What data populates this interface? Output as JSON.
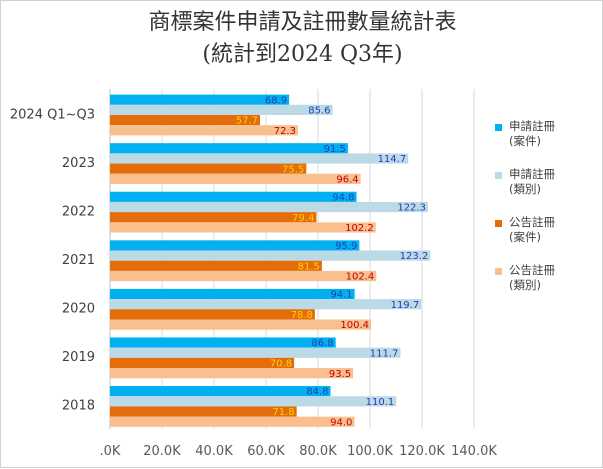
{
  "chart_data": {
    "type": "bar",
    "orientation": "horizontal",
    "title": "商標案件申請及註冊數量統計表",
    "subtitle": "(統計到2024 Q3年)",
    "categories": [
      "2024 Q1~Q3",
      "2023",
      "2022",
      "2021",
      "2020",
      "2019",
      "2018"
    ],
    "series": [
      {
        "name": "申請註冊\n(案件)",
        "color": "#00b0f0",
        "label_color": "#1f3fb8",
        "values": [
          68.9,
          91.5,
          94.8,
          95.9,
          94.1,
          86.8,
          84.8
        ]
      },
      {
        "name": "申請註冊\n(類別)",
        "color": "#bcd9e6",
        "label_color": "#1f3fb8",
        "values": [
          85.6,
          114.7,
          122.3,
          123.2,
          119.7,
          111.7,
          110.1
        ]
      },
      {
        "name": "公告註冊\n(案件)",
        "color": "#e46c0a",
        "label_color": "#ffd000",
        "values": [
          57.7,
          75.5,
          79.4,
          81.5,
          78.8,
          70.8,
          71.8
        ]
      },
      {
        "name": "公告註冊\n(類別)",
        "color": "#fabf8f",
        "label_color": "#c00000",
        "values": [
          72.3,
          96.4,
          102.2,
          102.4,
          100.4,
          93.5,
          94.0
        ]
      }
    ],
    "xlim": [
      0,
      140
    ],
    "xticks": [
      ".0K",
      "20.0K",
      "40.0K",
      "60.0K",
      "80.0K",
      "100.0K",
      "120.0K",
      "140.0K"
    ],
    "grid": true,
    "legend_position": "right"
  }
}
